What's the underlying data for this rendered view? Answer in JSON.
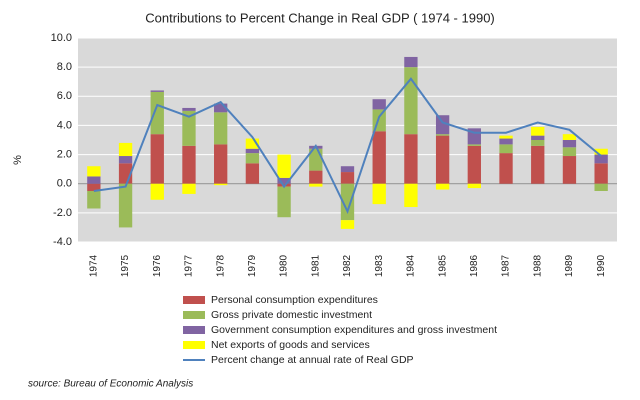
{
  "chart_data": {
    "type": "stacked-bar-line",
    "title": "Contributions to Percent Change in Real GDP ( 1974 - 1990)",
    "y_label": "%",
    "source": "source: Bureau of Economic Analysis",
    "categories": [
      "1974",
      "1975",
      "1976",
      "1977",
      "1978",
      "1979",
      "1980",
      "1981",
      "1982",
      "1983",
      "1984",
      "1985",
      "1986",
      "1987",
      "1988",
      "1989",
      "1990"
    ],
    "series": [
      {
        "name": "Personal consumption expenditures",
        "color": "#c0504d",
        "values": [
          -0.5,
          1.4,
          3.4,
          2.6,
          2.7,
          1.4,
          -0.2,
          0.9,
          0.8,
          3.6,
          3.4,
          3.3,
          2.6,
          2.1,
          2.6,
          1.9,
          1.4
        ]
      },
      {
        "name": "Gross private domestic investment",
        "color": "#9bbb59",
        "values": [
          -1.2,
          -3.0,
          2.9,
          2.4,
          2.2,
          0.7,
          -2.1,
          1.5,
          -2.5,
          1.5,
          4.6,
          0.1,
          0.1,
          0.6,
          0.4,
          0.6,
          -0.5
        ]
      },
      {
        "name": "Government consumption expenditures and gross investment",
        "color": "#8064a2",
        "values": [
          0.5,
          0.5,
          0.1,
          0.2,
          0.6,
          0.3,
          0.4,
          0.2,
          0.4,
          0.7,
          0.7,
          1.3,
          1.1,
          0.4,
          0.3,
          0.5,
          0.6
        ]
      },
      {
        "name": "Net exports of goods and services",
        "color": "#ffff00",
        "values": [
          0.7,
          0.9,
          -1.1,
          -0.7,
          -0.1,
          0.7,
          1.6,
          -0.2,
          -0.6,
          -1.4,
          -1.6,
          -0.4,
          -0.3,
          0.2,
          0.6,
          0.4,
          0.4
        ]
      },
      {
        "name": "Percent change at annual rate of Real GDP",
        "color": "#4f81bd",
        "kind": "line",
        "values": [
          -0.5,
          -0.2,
          5.4,
          4.6,
          5.6,
          3.2,
          -0.2,
          2.6,
          -1.9,
          4.6,
          7.2,
          4.2,
          3.5,
          3.5,
          4.2,
          3.7,
          1.9
        ]
      }
    ],
    "ylim": [
      -4,
      10
    ],
    "yticks": [
      {
        "value": -4,
        "label": "-4.0"
      },
      {
        "value": -2,
        "label": "-2.0"
      },
      {
        "value": 0,
        "label": "0.0"
      },
      {
        "value": 2,
        "label": "2.0"
      },
      {
        "value": 4,
        "label": "4.0"
      },
      {
        "value": 6,
        "label": "6.0"
      },
      {
        "value": 8,
        "label": "8.0"
      },
      {
        "value": 10,
        "label": "10.0"
      }
    ],
    "grid": true,
    "plot_background": "#d9d9d9"
  }
}
